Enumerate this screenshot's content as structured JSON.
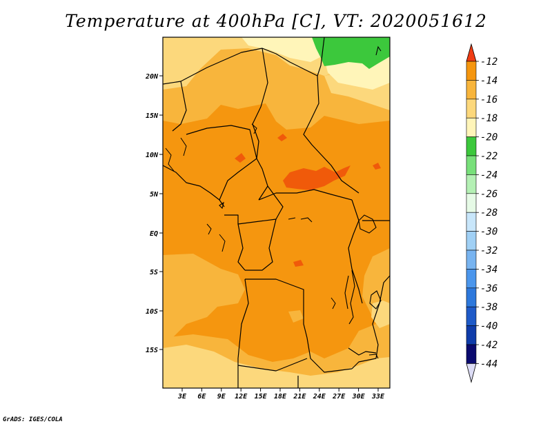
{
  "map": {
    "title": "Temperature at 400hPa [C], VT: 2020051612",
    "lat_ticks": [
      "20N",
      "15N",
      "10N",
      "5N",
      "EQ",
      "5S",
      "10S",
      "15S"
    ],
    "lon_ticks": [
      "3E",
      "6E",
      "9E",
      "12E",
      "15E",
      "18E",
      "21E",
      "24E",
      "27E",
      "30E",
      "33E"
    ],
    "credit": "GrADS: IGES/COLA"
  },
  "colorbar": {
    "labels": [
      "-12",
      "-14",
      "-16",
      "-18",
      "-20",
      "-22",
      "-24",
      "-26",
      "-28",
      "-30",
      "-32",
      "-34",
      "-36",
      "-38",
      "-40",
      "-42",
      "-44"
    ],
    "colors": [
      "#f05a0a",
      "#f5960f",
      "#f8b53c",
      "#fcd87c",
      "#fff5b9",
      "#3cc83c",
      "#78e07a",
      "#b4f0b4",
      "#e6fae6",
      "#c8e6fa",
      "#a0d0f5",
      "#78b4f0",
      "#4b96ec",
      "#2d78dc",
      "#1e5ac8",
      "#0f3caa",
      "#0a0a6e"
    ],
    "top_arrow_color": "#f03c14",
    "bottom_arrow_color": "#dcdcf5"
  },
  "fields": {
    "band_1416": "#f5960f",
    "band_1618": "#f8b53c",
    "band_1820": "#fcd87c",
    "band_2022": "#fff5b9",
    "band_2224": "#3cc83c",
    "band_1214": "#f05a0a"
  }
}
